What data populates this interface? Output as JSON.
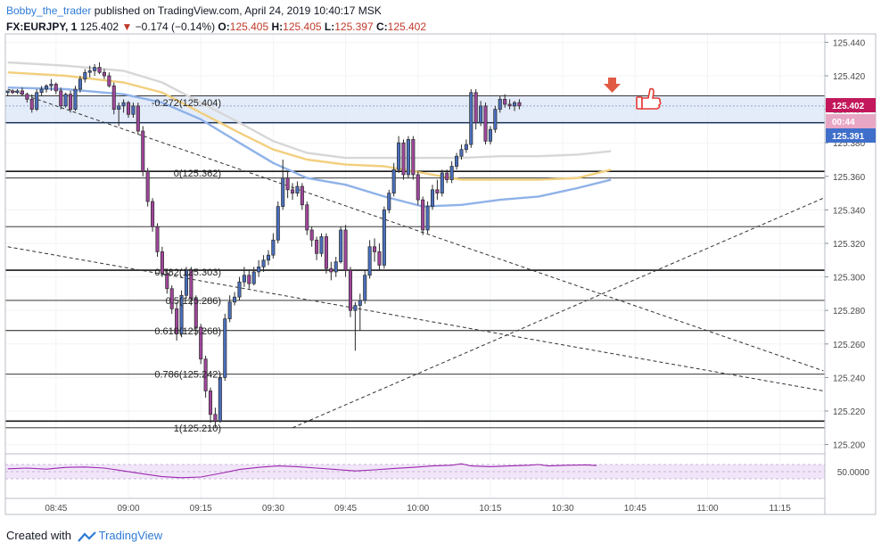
{
  "header": {
    "author": "Bobby_the_trader",
    "published_text": "published on TradingView.com, April 24, 2019 10:40:17 MSK",
    "symbol": "FX:EURJPY, 1",
    "last": "125.402",
    "change": "−0.174 (−0.14%)",
    "o_label": "O:",
    "o_value": "125.405",
    "h_label": "H:",
    "h_value": "125.405",
    "l_label": "L:",
    "l_value": "125.397",
    "c_label": "C:",
    "c_value": "125.402"
  },
  "footer": {
    "created_with": "Created with",
    "brand": "TradingView"
  },
  "colors": {
    "bull": "#4a6fbd",
    "bear": "#a0469c",
    "ma_fast": "#8fb2e8",
    "ma_mid": "#f2cf7e",
    "ma_slow": "#d7d7d7",
    "rsi": "#9c27b0",
    "zone": "#dbe6f7",
    "tag_blue": "#3f6fca",
    "tag_pink": "#e8a6c5"
  },
  "icons": [
    "down-arrow-icon",
    "thumbs-up-icon",
    "tradingview-logo-icon"
  ],
  "chart_data": {
    "type": "candlestick",
    "symbol": "FX:EURJPY",
    "interval": "1",
    "ylim": [
      125.195,
      125.445
    ],
    "y_ticks": [
      "125.440",
      "125.420",
      "125.400",
      "125.380",
      "125.360",
      "125.340",
      "125.320",
      "125.300",
      "125.280",
      "125.260",
      "125.240",
      "125.220",
      "125.200"
    ],
    "x_ticks": [
      {
        "label": "08:45",
        "t": -70
      },
      {
        "label": "09:00",
        "t": -55
      },
      {
        "label": "09:15",
        "t": -40
      },
      {
        "label": "09:30",
        "t": -25
      },
      {
        "label": "09:45",
        "t": -10
      },
      {
        "label": "10:00",
        "t": 5
      },
      {
        "label": "10:15",
        "t": 20
      },
      {
        "label": "10:30",
        "t": 35
      },
      {
        "label": "10:45",
        "t": 50
      },
      {
        "label": "11:00",
        "t": 65
      },
      {
        "label": "11:15",
        "t": 80
      }
    ],
    "price_tags": [
      {
        "label": "125.402",
        "value": 125.402,
        "style": "pink"
      },
      {
        "label": "00:44",
        "value": 125.395,
        "style": "pink"
      },
      {
        "label": "125.391",
        "value": 125.385,
        "style": "blue"
      }
    ],
    "fib_levels": [
      {
        "label": "-0.272(125.404)",
        "value": 125.404
      },
      {
        "label": "0(125.362)",
        "value": 125.362
      },
      {
        "label": "0.382(125.303)",
        "value": 125.303
      },
      {
        "label": "0.5(125.286)",
        "value": 125.286
      },
      {
        "label": "0.618(125.268)",
        "value": 125.268
      },
      {
        "label": "0.786(125.242)",
        "value": 125.242
      },
      {
        "label": "1(125.210)",
        "value": 125.21
      }
    ],
    "horizontal_lines": [
      125.408,
      125.392,
      125.363,
      125.359,
      125.33,
      125.304,
      125.286,
      125.268,
      125.242,
      125.214,
      125.21
    ],
    "zone": [
      125.392,
      125.408
    ],
    "trendlines": [
      {
        "from": [
          -80,
          125.412
        ],
        "to": [
          89,
          125.244
        ]
      },
      {
        "from": [
          -80,
          125.318
        ],
        "to": [
          89,
          125.232
        ]
      },
      {
        "from": [
          -21,
          125.21
        ],
        "to": [
          89,
          125.347
        ]
      }
    ],
    "moving_averages": [
      {
        "key": "ma_slow",
        "points": [
          [
            -80,
            125.428
          ],
          [
            -68,
            125.426
          ],
          [
            -56,
            125.423
          ],
          [
            -48,
            125.416
          ],
          [
            -40,
            125.404
          ],
          [
            -32,
            125.392
          ],
          [
            -25,
            125.381
          ],
          [
            -18,
            125.374
          ],
          [
            -10,
            125.371
          ],
          [
            -2,
            125.371
          ],
          [
            6,
            125.371
          ],
          [
            14,
            125.371
          ],
          [
            22,
            125.372
          ],
          [
            30,
            125.372
          ],
          [
            38,
            125.373
          ],
          [
            45,
            125.375
          ]
        ]
      },
      {
        "key": "ma_mid",
        "points": [
          [
            -80,
            125.422
          ],
          [
            -68,
            125.42
          ],
          [
            -56,
            125.416
          ],
          [
            -48,
            125.41
          ],
          [
            -40,
            125.398
          ],
          [
            -32,
            125.386
          ],
          [
            -25,
            125.376
          ],
          [
            -18,
            125.37
          ],
          [
            -10,
            125.367
          ],
          [
            -2,
            125.366
          ],
          [
            6,
            125.362
          ],
          [
            14,
            125.358
          ],
          [
            22,
            125.358
          ],
          [
            30,
            125.358
          ],
          [
            38,
            125.359
          ],
          [
            45,
            125.364
          ]
        ]
      },
      {
        "key": "ma_fast",
        "points": [
          [
            -80,
            125.413
          ],
          [
            -68,
            125.412
          ],
          [
            -56,
            125.409
          ],
          [
            -48,
            125.404
          ],
          [
            -40,
            125.394
          ],
          [
            -32,
            125.38
          ],
          [
            -25,
            125.368
          ],
          [
            -18,
            125.359
          ],
          [
            -10,
            125.355
          ],
          [
            -2,
            125.348
          ],
          [
            6,
            125.342
          ],
          [
            14,
            125.343
          ],
          [
            22,
            125.346
          ],
          [
            30,
            125.348
          ],
          [
            38,
            125.353
          ],
          [
            45,
            125.358
          ]
        ]
      }
    ],
    "candles": [
      [
        -80,
        125.41,
        125.411,
        125.408,
        125.411
      ],
      [
        -79,
        125.411,
        125.412,
        125.409,
        125.41
      ],
      [
        -78,
        125.41,
        125.412,
        125.409,
        125.411
      ],
      [
        -77,
        125.411,
        125.413,
        125.408,
        125.409
      ],
      [
        -76,
        125.409,
        125.41,
        125.404,
        125.406
      ],
      [
        -75,
        125.406,
        125.409,
        125.398,
        125.4
      ],
      [
        -74,
        125.4,
        125.412,
        125.399,
        125.41
      ],
      [
        -73,
        125.41,
        125.414,
        125.408,
        125.412
      ],
      [
        -72,
        125.412,
        125.415,
        125.41,
        125.414
      ],
      [
        -71,
        125.414,
        125.418,
        125.411,
        125.415
      ],
      [
        -70,
        125.415,
        125.416,
        125.409,
        125.411
      ],
      [
        -69,
        125.411,
        125.413,
        125.4,
        125.402
      ],
      [
        -68,
        125.402,
        125.41,
        125.401,
        125.409
      ],
      [
        -67,
        125.409,
        125.411,
        125.398,
        125.4
      ],
      [
        -66,
        125.4,
        125.414,
        125.399,
        125.412
      ],
      [
        -65,
        125.412,
        125.42,
        125.41,
        125.418
      ],
      [
        -64,
        125.418,
        125.424,
        125.416,
        125.422
      ],
      [
        -63,
        125.422,
        125.426,
        125.419,
        125.423
      ],
      [
        -62,
        125.423,
        125.427,
        125.42,
        125.425
      ],
      [
        -61,
        125.425,
        125.428,
        125.421,
        125.422
      ],
      [
        -60,
        125.422,
        125.424,
        125.418,
        125.42
      ],
      [
        -59,
        125.42,
        125.422,
        125.413,
        125.414
      ],
      [
        -58,
        125.414,
        125.416,
        125.397,
        125.4
      ],
      [
        -57,
        125.4,
        125.404,
        125.39,
        125.402
      ],
      [
        -56,
        125.402,
        125.406,
        125.398,
        125.404
      ],
      [
        -55,
        125.404,
        125.405,
        125.395,
        125.397
      ],
      [
        -54,
        125.397,
        125.404,
        125.395,
        125.402
      ],
      [
        -53,
        125.402,
        125.404,
        125.385,
        125.387
      ],
      [
        -52,
        125.387,
        125.39,
        125.36,
        125.363
      ],
      [
        -51,
        125.363,
        125.365,
        125.342,
        125.345
      ],
      [
        -50,
        125.345,
        125.347,
        125.327,
        125.33
      ],
      [
        -49,
        125.33,
        125.332,
        125.312,
        125.315
      ],
      [
        -48,
        125.315,
        125.318,
        125.3,
        125.302
      ],
      [
        -47,
        125.302,
        125.305,
        125.29,
        125.293
      ],
      [
        -46,
        125.293,
        125.295,
        125.278,
        125.281
      ],
      [
        -45,
        125.281,
        125.285,
        125.262,
        125.266
      ],
      [
        -44,
        125.266,
        125.292,
        125.264,
        125.289
      ],
      [
        -43,
        125.289,
        125.306,
        125.287,
        125.304
      ],
      [
        -42,
        125.304,
        125.306,
        125.283,
        125.287
      ],
      [
        -41,
        125.287,
        125.289,
        125.265,
        125.27
      ],
      [
        -40,
        125.27,
        125.272,
        125.248,
        125.251
      ],
      [
        -39,
        125.251,
        125.253,
        125.228,
        125.232
      ],
      [
        -38,
        125.232,
        125.234,
        125.213,
        125.218
      ],
      [
        -37,
        125.218,
        125.222,
        125.21,
        125.214
      ],
      [
        -36,
        125.214,
        125.242,
        125.213,
        125.24
      ],
      [
        -35,
        125.24,
        125.278,
        125.238,
        125.275
      ],
      [
        -34,
        125.275,
        125.289,
        125.273,
        125.285
      ],
      [
        -33,
        125.285,
        125.291,
        125.283,
        125.288
      ],
      [
        -32,
        125.288,
        125.3,
        125.286,
        125.297
      ],
      [
        -31,
        125.297,
        125.306,
        125.294,
        125.301
      ],
      [
        -30,
        125.301,
        125.304,
        125.293,
        125.296
      ],
      [
        -29,
        125.296,
        125.306,
        125.295,
        125.303
      ],
      [
        -28,
        125.303,
        125.31,
        125.3,
        125.306
      ],
      [
        -27,
        125.306,
        125.313,
        125.303,
        125.31
      ],
      [
        -26,
        125.31,
        125.316,
        125.307,
        125.313
      ],
      [
        -25,
        125.313,
        125.326,
        125.311,
        125.322
      ],
      [
        -24,
        125.322,
        125.345,
        125.32,
        125.342
      ],
      [
        -23,
        125.342,
        125.37,
        125.34,
        125.359
      ],
      [
        -22,
        125.359,
        125.363,
        125.347,
        125.352
      ],
      [
        -21,
        125.352,
        125.356,
        125.346,
        125.35
      ],
      [
        -20,
        125.35,
        125.357,
        125.348,
        125.354
      ],
      [
        -19,
        125.354,
        125.356,
        125.34,
        125.343
      ],
      [
        -18,
        125.343,
        125.345,
        125.325,
        125.328
      ],
      [
        -17,
        125.328,
        125.33,
        125.318,
        125.322
      ],
      [
        -16,
        125.322,
        125.324,
        125.31,
        125.314
      ],
      [
        -15,
        125.314,
        125.326,
        125.312,
        125.324
      ],
      [
        -14,
        125.324,
        125.326,
        125.302,
        125.305
      ],
      [
        -13,
        125.305,
        125.309,
        125.298,
        125.303
      ],
      [
        -12,
        125.303,
        125.312,
        125.3,
        125.309
      ],
      [
        -11,
        125.309,
        125.33,
        125.308,
        125.328
      ],
      [
        -10,
        125.328,
        125.331,
        125.3,
        125.304
      ],
      [
        -9,
        125.304,
        125.306,
        125.276,
        125.28
      ],
      [
        -8,
        125.28,
        125.285,
        125.256,
        125.283
      ],
      [
        -7,
        125.283,
        125.29,
        125.268,
        125.286
      ],
      [
        -6,
        125.286,
        125.304,
        125.284,
        125.301
      ],
      [
        -5,
        125.301,
        125.322,
        125.299,
        125.318
      ],
      [
        -4,
        125.318,
        125.323,
        125.309,
        125.315
      ],
      [
        -3,
        125.315,
        125.32,
        125.304,
        125.307
      ],
      [
        -2,
        125.307,
        125.342,
        125.305,
        125.34
      ],
      [
        -1,
        125.34,
        125.352,
        125.338,
        125.35
      ],
      [
        0,
        125.35,
        125.368,
        125.348,
        125.364
      ],
      [
        1,
        125.364,
        125.384,
        125.362,
        125.38
      ],
      [
        2,
        125.38,
        125.382,
        125.358,
        125.361
      ],
      [
        3,
        125.361,
        125.384,
        125.359,
        125.382
      ],
      [
        4,
        125.382,
        125.384,
        125.358,
        125.361
      ],
      [
        5,
        125.361,
        125.363,
        125.343,
        125.346
      ],
      [
        6,
        125.346,
        125.348,
        125.325,
        125.328
      ],
      [
        7,
        125.328,
        125.345,
        125.326,
        125.342
      ],
      [
        8,
        125.342,
        125.355,
        125.34,
        125.352
      ],
      [
        9,
        125.352,
        125.358,
        125.346,
        125.35
      ],
      [
        10,
        125.35,
        125.364,
        125.348,
        125.362
      ],
      [
        11,
        125.362,
        125.364,
        125.356,
        125.358
      ],
      [
        12,
        125.358,
        125.369,
        125.356,
        125.366
      ],
      [
        13,
        125.366,
        125.374,
        125.364,
        125.372
      ],
      [
        14,
        125.372,
        125.379,
        125.37,
        125.376
      ],
      [
        15,
        125.376,
        125.382,
        125.374,
        125.379
      ],
      [
        16,
        125.379,
        125.412,
        125.377,
        125.41
      ],
      [
        17,
        125.41,
        125.412,
        125.388,
        125.392
      ],
      [
        18,
        125.392,
        125.405,
        125.39,
        125.402
      ],
      [
        19,
        125.402,
        125.404,
        125.379,
        125.381
      ],
      [
        20,
        125.381,
        125.39,
        125.379,
        125.388
      ],
      [
        21,
        125.388,
        125.402,
        125.386,
        125.4
      ],
      [
        22,
        125.4,
        125.408,
        125.398,
        125.406
      ],
      [
        23,
        125.406,
        125.409,
        125.401,
        125.403
      ],
      [
        24,
        125.403,
        125.406,
        125.4,
        125.402
      ],
      [
        25,
        125.402,
        125.405,
        125.399,
        125.404
      ],
      [
        26,
        125.404,
        125.406,
        125.4,
        125.402
      ]
    ],
    "rsi": {
      "ylim": [
        0,
        100
      ],
      "level_label": "50.0000",
      "levels": [
        30,
        50,
        70
      ],
      "points": [
        [
          -80,
          58
        ],
        [
          -76,
          60
        ],
        [
          -72,
          57
        ],
        [
          -68,
          62
        ],
        [
          -64,
          63
        ],
        [
          -60,
          60
        ],
        [
          -56,
          52
        ],
        [
          -52,
          44
        ],
        [
          -48,
          36
        ],
        [
          -44,
          33
        ],
        [
          -40,
          35
        ],
        [
          -36,
          45
        ],
        [
          -32,
          56
        ],
        [
          -28,
          62
        ],
        [
          -24,
          66
        ],
        [
          -20,
          64
        ],
        [
          -16,
          60
        ],
        [
          -12,
          56
        ],
        [
          -8,
          52
        ],
        [
          -4,
          55
        ],
        [
          0,
          59
        ],
        [
          4,
          62
        ],
        [
          8,
          66
        ],
        [
          12,
          68
        ],
        [
          14,
          72
        ],
        [
          16,
          66
        ],
        [
          20,
          64
        ],
        [
          24,
          66
        ],
        [
          28,
          68
        ],
        [
          30,
          70
        ],
        [
          32,
          66
        ],
        [
          36,
          68
        ],
        [
          40,
          69
        ],
        [
          42,
          67
        ]
      ]
    }
  }
}
